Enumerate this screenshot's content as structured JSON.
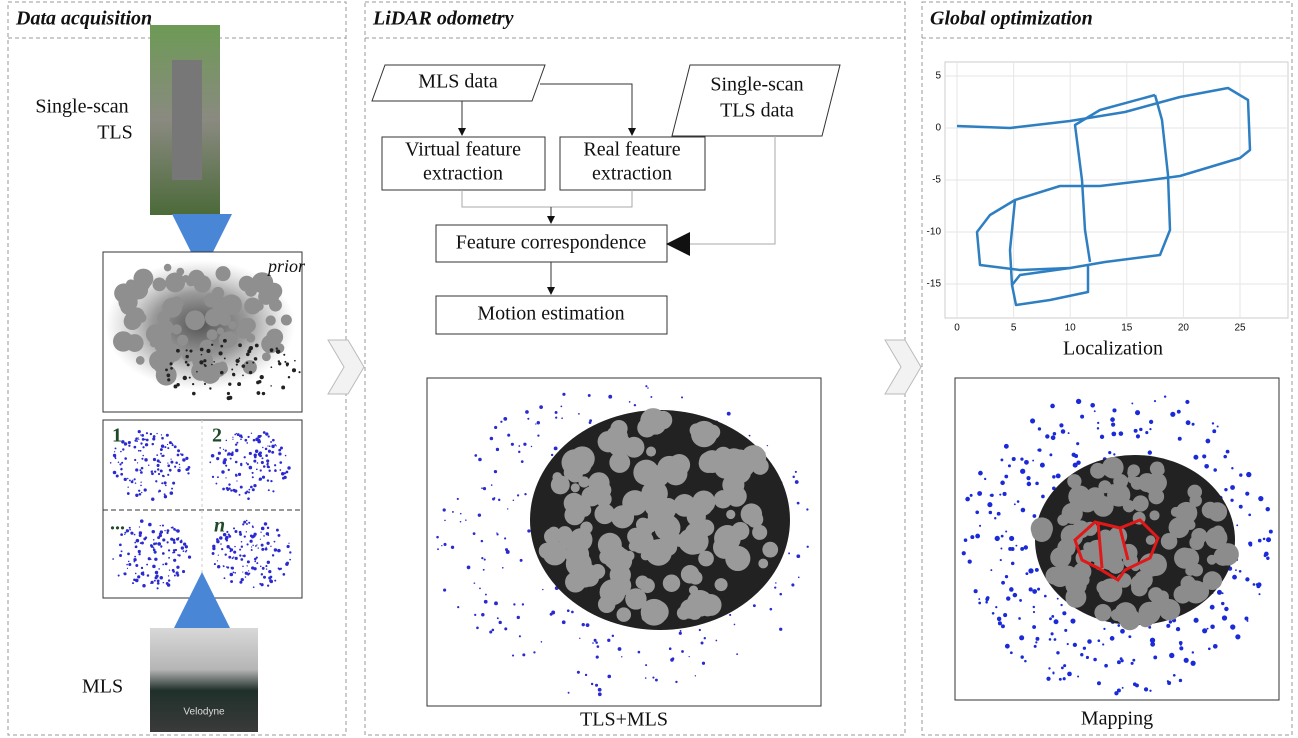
{
  "panels": {
    "acquisition": {
      "title": "Data acquisition",
      "tls_label": [
        "Single-scan",
        "TLS"
      ],
      "prior_label": "prior",
      "scan_labels": [
        "1",
        "2",
        "...",
        "n"
      ],
      "mls_label": "MLS",
      "sensor_brand": "Velodyne"
    },
    "odometry": {
      "title": "LiDAR odometry",
      "nodes": [
        {
          "label": [
            "MLS data"
          ]
        },
        {
          "label": [
            "Single-scan",
            "TLS data"
          ]
        },
        {
          "label": [
            "Virtual feature",
            "extraction"
          ]
        },
        {
          "label": [
            "Real feature",
            "extraction"
          ]
        },
        {
          "label": [
            "Feature correspondence"
          ]
        },
        {
          "label": [
            "Motion estimation"
          ]
        }
      ],
      "caption": "TLS+MLS"
    },
    "optimization": {
      "title": "Global optimization",
      "plot": {
        "xticks": [
          0,
          5,
          10,
          15,
          20,
          25
        ],
        "yticks": [
          5,
          0,
          -5,
          -10,
          -15
        ]
      },
      "localization_caption": "Localization",
      "mapping_caption": "Mapping"
    }
  }
}
